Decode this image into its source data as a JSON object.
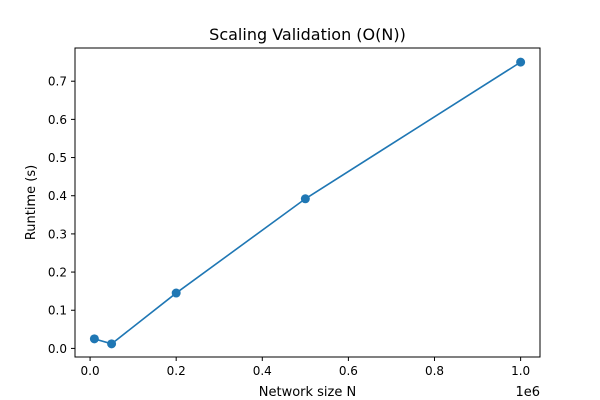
{
  "chart_data": {
    "type": "line",
    "title": "Scaling Validation (O(N))",
    "xlabel": "Network size N",
    "ylabel": "Runtime (s)",
    "x_offset_label": "1e6",
    "xlim": [
      -35000,
      1045000
    ],
    "ylim": [
      -0.0225,
      0.787
    ],
    "x_ticks": [
      0,
      200000,
      400000,
      600000,
      800000,
      1000000
    ],
    "x_tick_labels": [
      "0.0",
      "0.2",
      "0.4",
      "0.6",
      "0.8",
      "1.0"
    ],
    "y_ticks": [
      0.0,
      0.1,
      0.2,
      0.3,
      0.4,
      0.5,
      0.6,
      0.7
    ],
    "y_tick_labels": [
      "0.0",
      "0.1",
      "0.2",
      "0.3",
      "0.4",
      "0.5",
      "0.6",
      "0.7"
    ],
    "grid": false,
    "legend": null,
    "series": [
      {
        "color": "#1f77b4",
        "marker": "circle",
        "x": [
          10000,
          50000,
          200000,
          500000,
          1000000
        ],
        "y": [
          0.025,
          0.012,
          0.145,
          0.392,
          0.75
        ]
      }
    ]
  }
}
